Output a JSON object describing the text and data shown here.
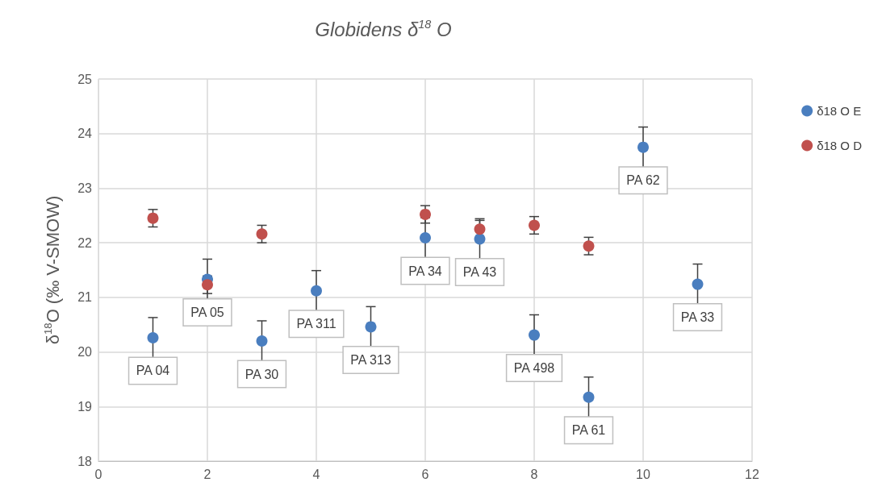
{
  "chart_data": {
    "type": "scatter",
    "title": "Globidens δ$^{18}$ O",
    "ylabel": "δ$^{18}$O (‰ V-SMOW)",
    "series": [
      {
        "name": "δ18 O E",
        "color": "#4a7ebf",
        "x": [
          1,
          2,
          3,
          4,
          5,
          6,
          7,
          8,
          9,
          10,
          11
        ],
        "values": [
          20.26,
          21.33,
          20.2,
          21.12,
          20.46,
          22.09,
          22.07,
          20.31,
          19.17,
          23.75,
          21.24
        ],
        "errors": [
          0.37,
          0.37,
          0.37,
          0.37,
          0.37,
          0.37,
          0.37,
          0.37,
          0.37,
          0.37,
          0.37
        ],
        "value_labels": [
          "PA 04",
          "PA 05",
          "PA 30",
          "PA 311",
          "PA 313",
          "PA 34",
          "PA 43",
          "PA 498",
          "PA 61",
          "PA 62",
          "PA 33"
        ]
      },
      {
        "name": "δ18 O D",
        "color": "#c0504d",
        "x": [
          1,
          2,
          3,
          6,
          7,
          8,
          9
        ],
        "values": [
          22.45,
          21.23,
          22.16,
          22.52,
          22.25,
          22.32,
          21.94
        ],
        "errors": [
          0.16,
          0.16,
          0.16,
          0.16,
          0.16,
          0.16,
          0.16
        ]
      }
    ],
    "xlim": [
      0,
      12
    ],
    "xticks": [
      0,
      2,
      4,
      6,
      8,
      10,
      12
    ],
    "ylim": [
      18,
      25
    ],
    "yticks": [
      18,
      19,
      20,
      21,
      22,
      23,
      24,
      25
    ],
    "grid": true,
    "legend": "right",
    "marker": "circle"
  }
}
